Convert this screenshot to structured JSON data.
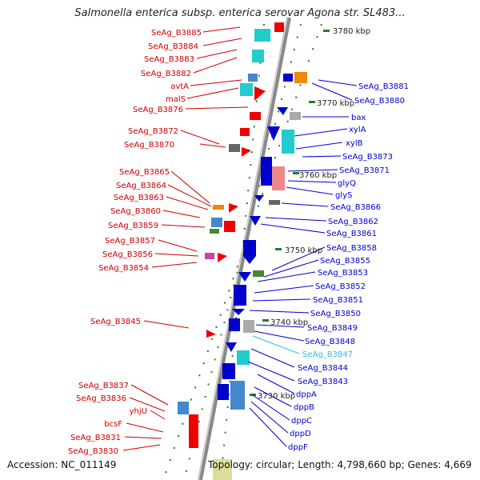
{
  "title": "Salmonella enterica subsp. enterica serovar Agona str. SL483...",
  "accession": "Accession: NC_011149",
  "topology": "Topology: circular; Length: 4,798,660 bp; Genes: 4,669",
  "colors": {
    "left_label": "#cc0000",
    "right_label": "#0000cc",
    "highlight": "#33bbdd",
    "axis": "#888888",
    "tick": "#2a7a2a"
  },
  "ruler": [
    "3780 kbp",
    "3770 kbp",
    "3760 kbp",
    "3750 kbp",
    "3740 kbp",
    "3730 kbp"
  ],
  "left_labels": [
    "SeAg_B3885",
    "SeAg_B3884",
    "SeAg_B3883",
    "SeAg_B3882",
    "avtA",
    "malS",
    "SeAg_B3876",
    "SeAg_B3872",
    "SeAg_B3870",
    "SeAg_B3865",
    "SeAg_B3864",
    "SeAg_B3863",
    "SeAg_B3860",
    "SeAg_B3859",
    "SeAg_B3857",
    "SeAg_B3856",
    "SeAg_B3854",
    "SeAg_B3845",
    "SeAg_B3837",
    "SeAg_B3836",
    "yhjU",
    "bcsF",
    "SeAg_B3831",
    "SeAg_B3830"
  ],
  "right_labels": [
    "SeAg_B3881",
    "SeAg_B3880",
    "bax",
    "xylA",
    "xylB",
    "SeAg_B3873",
    "SeAg_B3871",
    "glyQ",
    "glyS",
    "SeAg_B3866",
    "SeAg_B3862",
    "SeAg_B3861",
    "SeAg_B3858",
    "SeAg_B3855",
    "SeAg_B3853",
    "SeAg_B3852",
    "SeAg_B3851",
    "SeAg_B3850",
    "SeAg_B3849",
    "SeAg_B3848",
    "SeAg_B3847",
    "SeAg_B3844",
    "SeAg_B3843",
    "dppA",
    "dppB",
    "dppC",
    "dppD",
    "dppF"
  ]
}
